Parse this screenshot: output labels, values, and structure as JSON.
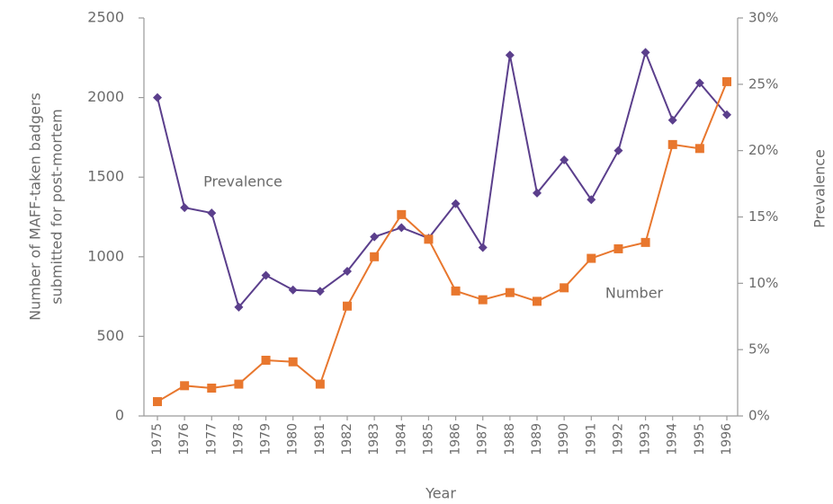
{
  "chart_data": {
    "type": "line",
    "xlabel": "Year",
    "ylabel": [
      "Number of MAFF-taken badgers",
      "submitted for post-mortem"
    ],
    "y2label": "Prevalence",
    "categories": [
      "1975",
      "1976",
      "1977",
      "1978",
      "1979",
      "1980",
      "1981",
      "1982",
      "1983",
      "1984",
      "1985",
      "1986",
      "1987",
      "1988",
      "1989",
      "1990",
      "1991",
      "1992",
      "1993",
      "1994",
      "1995",
      "1996"
    ],
    "series": [
      {
        "name": "Prevalence",
        "color": "#5b3f8c",
        "marker": "diamond",
        "axis": "y2",
        "values": [
          24.0,
          15.7,
          15.3,
          8.2,
          10.6,
          9.5,
          9.4,
          10.9,
          13.5,
          14.2,
          13.4,
          16.0,
          12.7,
          27.2,
          16.8,
          19.3,
          16.3,
          20.0,
          27.4,
          22.3,
          25.1,
          22.7
        ]
      },
      {
        "name": "Number",
        "color": "#e8772e",
        "marker": "square",
        "values": [
          90,
          190,
          175,
          200,
          350,
          340,
          200,
          690,
          1000,
          1265,
          1110,
          785,
          730,
          775,
          720,
          805,
          990,
          1050,
          1090,
          1705,
          1680,
          2100
        ]
      }
    ],
    "ylim": [
      0,
      2500
    ],
    "yticks": [
      0,
      500,
      1000,
      1500,
      2000,
      2500
    ],
    "y2lim": [
      0,
      30
    ],
    "y2ticks": [
      {
        "value": 0,
        "label": "0%"
      },
      {
        "value": 5,
        "label": "5%"
      },
      {
        "value": 10,
        "label": "10%"
      },
      {
        "value": 15,
        "label": "15%"
      },
      {
        "value": 20,
        "label": "20%"
      },
      {
        "value": 25,
        "label": "25%"
      },
      {
        "value": 30,
        "label": "30%"
      }
    ],
    "legend": "inline",
    "grid": false
  }
}
